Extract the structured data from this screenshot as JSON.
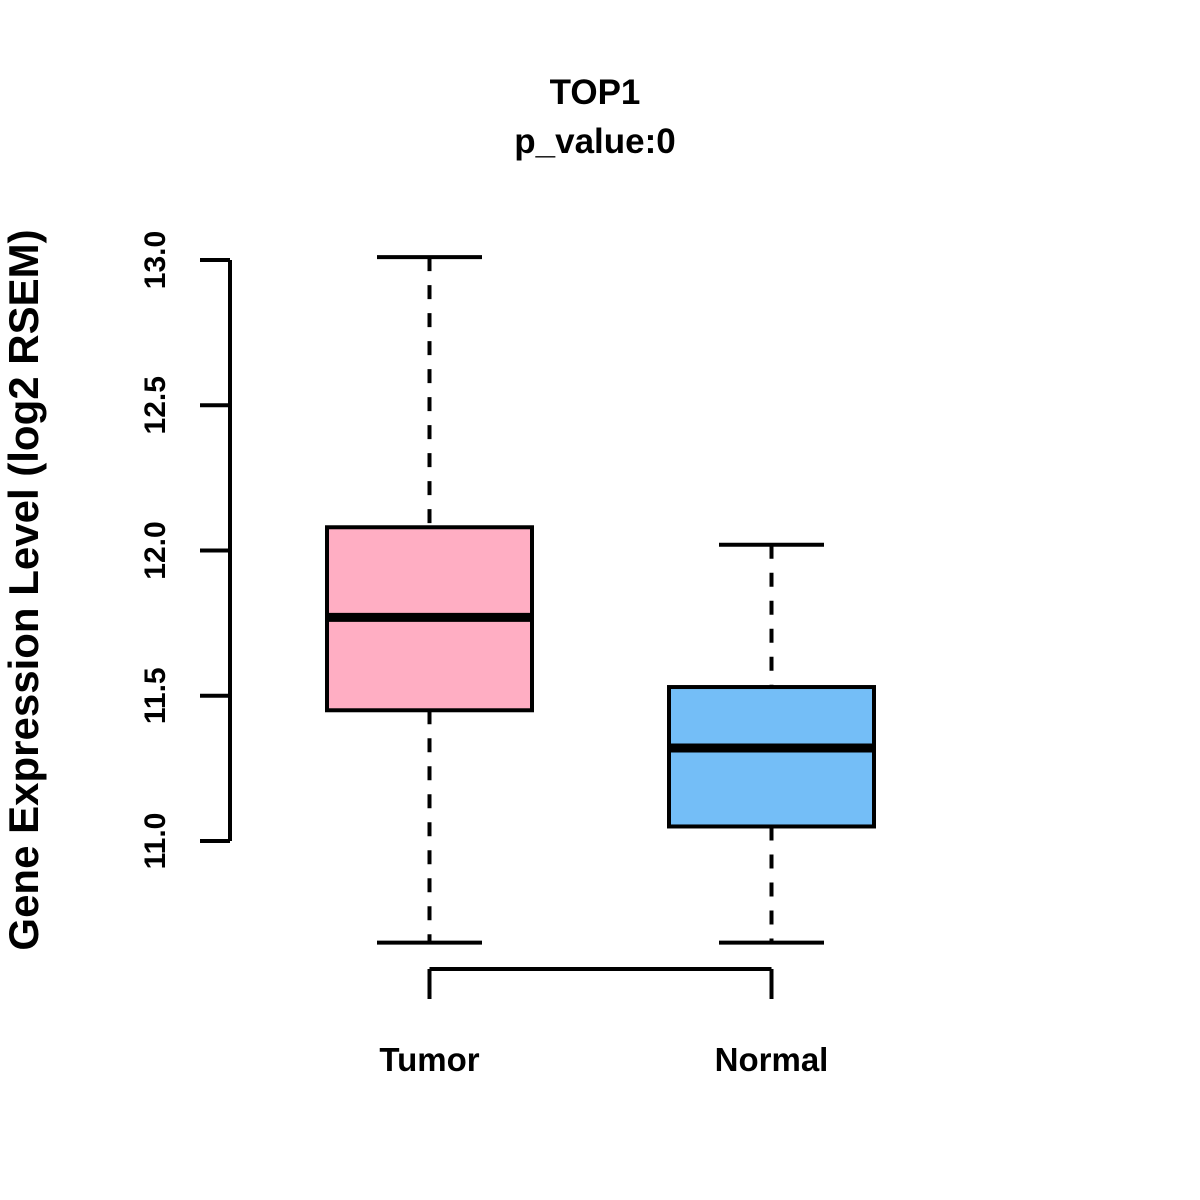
{
  "chart_data": {
    "type": "boxplot",
    "title": "TOP1",
    "subtitle": "p_value:0",
    "ylabel": "Gene Expression Level (log2 RSEM)",
    "xlabel": "",
    "categories": [
      "Tumor",
      "Normal"
    ],
    "ylim": [
      11.0,
      13.0
    ],
    "ytick_labels": [
      "11.0",
      "11.5",
      "12.0",
      "12.5",
      "13.0"
    ],
    "grid": false,
    "legend": "none",
    "series": [
      {
        "name": "Tumor",
        "fill_color": "#FFAEC3",
        "whisker_low": 10.65,
        "q1": 11.45,
        "median": 11.77,
        "q3": 12.08,
        "whisker_high": 13.01
      },
      {
        "name": "Normal",
        "fill_color": "#74BEF7",
        "whisker_low": 10.65,
        "q1": 11.05,
        "median": 11.32,
        "q3": 11.53,
        "whisker_high": 12.02
      }
    ],
    "stroke_color": "#000000",
    "background_color": "#FFFFFF"
  }
}
